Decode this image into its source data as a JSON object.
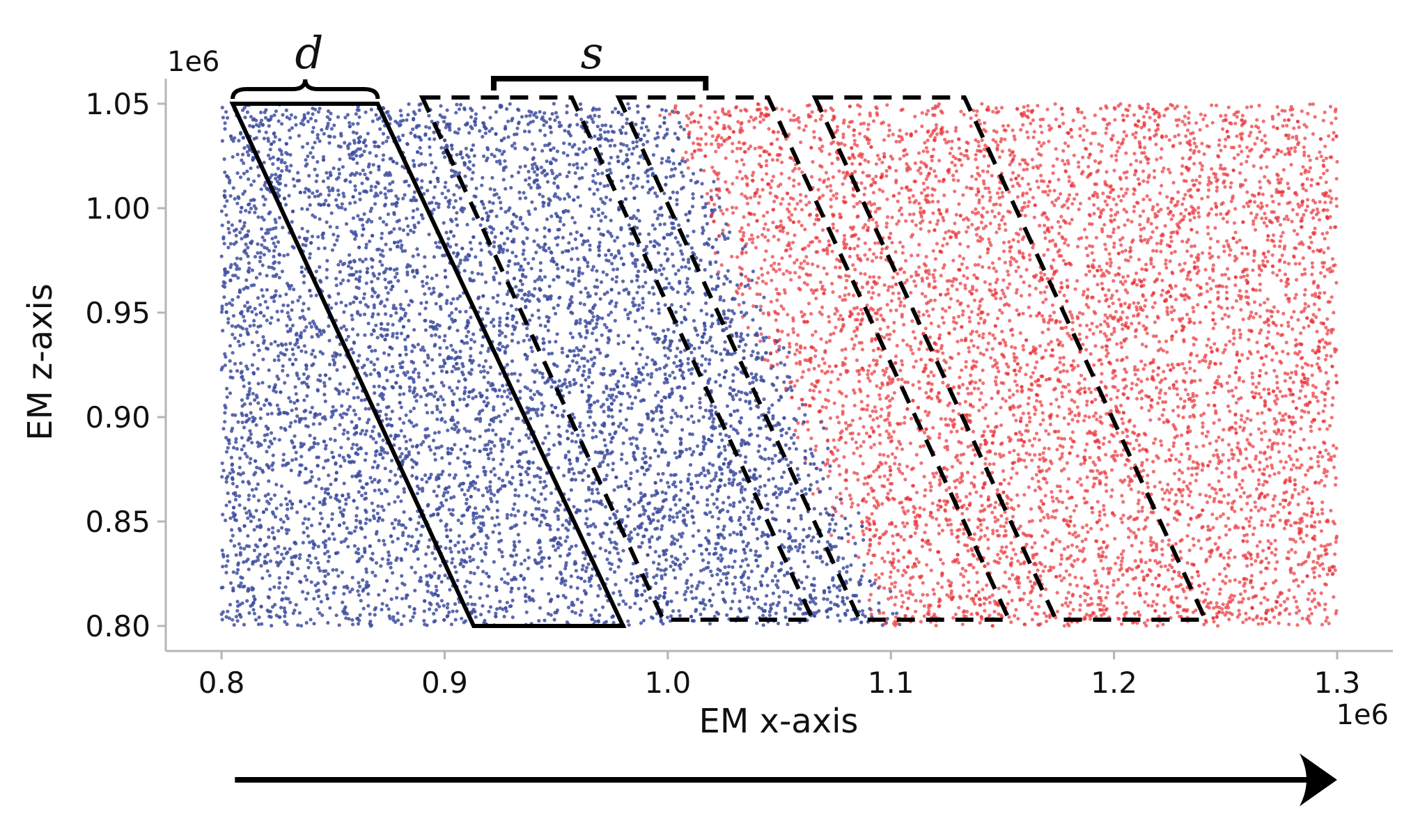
{
  "chart_data": {
    "type": "scatter",
    "title": "",
    "xlabel": "EM x-axis",
    "ylabel": "EM z-axis",
    "x_offset_label": "1e6",
    "y_offset_label": "1e6",
    "xlim": [
      0.775,
      1.325
    ],
    "ylim": [
      0.788,
      1.062
    ],
    "x_ticks": [
      "0.8",
      "0.9",
      "1.0",
      "1.1",
      "1.2",
      "1.3"
    ],
    "x_tick_values": [
      0.8,
      0.9,
      1.0,
      1.1,
      1.2,
      1.3
    ],
    "y_ticks": [
      "0.80",
      "0.85",
      "0.90",
      "0.95",
      "1.00",
      "1.05"
    ],
    "y_tick_values": [
      0.8,
      0.85,
      0.9,
      0.95,
      1.0,
      1.05
    ],
    "grid": false,
    "series": [
      {
        "color": "#3f4f9f",
        "region": "x from 0.8 up to a boundary line running from (1.0, 1.05) to (1.1, 0.80)",
        "point_count": 6500
      },
      {
        "color": "#e8353b",
        "region": "x from the boundary line up to 1.3",
        "point_count": 6500
      }
    ],
    "scatter_extent": {
      "x": [
        0.8,
        1.3
      ],
      "z": [
        0.8,
        1.05
      ]
    },
    "annotations": {
      "solid_parallelogram": {
        "top": [
          0.805,
          0.87
        ],
        "top_z": 1.05,
        "bottom": [
          0.913,
          0.98
        ],
        "bottom_z": 0.8
      },
      "dashed_parallelograms": [
        {
          "top": [
            0.89,
            0.957
          ],
          "top_z": 1.053,
          "bottom": [
            0.998,
            1.065
          ],
          "bottom_z": 0.803
        },
        {
          "top": [
            0.978,
            1.045
          ],
          "top_z": 1.053,
          "bottom": [
            1.086,
            1.153
          ],
          "bottom_z": 0.803
        },
        {
          "top": [
            1.066,
            1.133
          ],
          "top_z": 1.053,
          "bottom": [
            1.174,
            1.241
          ],
          "bottom_z": 0.803
        }
      ],
      "brace_label": "d",
      "bracket_label": "s",
      "brace_span": [
        0.805,
        0.87
      ],
      "bracket_span": [
        0.922,
        1.017
      ]
    },
    "arrow": {
      "direction": "right",
      "from_x": 0.806,
      "to_x": 1.3
    }
  }
}
